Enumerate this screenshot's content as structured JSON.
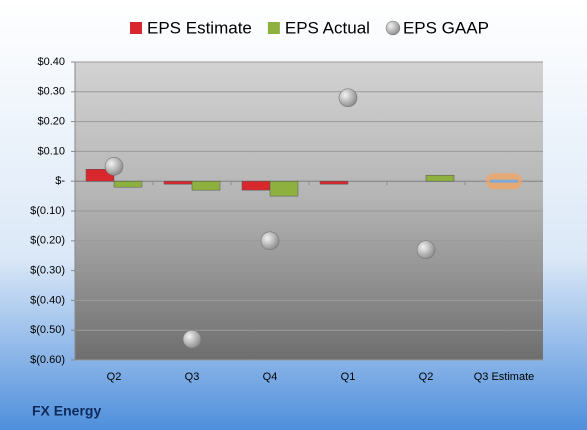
{
  "chart_data": {
    "type": "bar",
    "title": "FX Energy",
    "categories": [
      "Q2",
      "Q3",
      "Q4",
      "Q1",
      "Q2",
      "Q3 Estimate"
    ],
    "series": [
      {
        "name": "EPS Estimate",
        "color": "#d9272e",
        "values": [
          0.04,
          -0.01,
          -0.03,
          -0.01,
          null,
          0
        ]
      },
      {
        "name": "EPS Actual",
        "color": "#8db03f",
        "values": [
          -0.02,
          -0.03,
          -0.05,
          null,
          0.02,
          null
        ]
      },
      {
        "name": "EPS GAAP",
        "color": "#a0a0a0",
        "type": "scatter",
        "values": [
          0.05,
          -0.53,
          -0.2,
          0.28,
          -0.23,
          null
        ]
      }
    ],
    "ylim": [
      -0.6,
      0.4
    ],
    "yticks": [
      {
        "value": 0.4,
        "label": "$0.40"
      },
      {
        "value": 0.3,
        "label": "$0.30"
      },
      {
        "value": 0.2,
        "label": "$0.20"
      },
      {
        "value": 0.1,
        "label": "$0.10"
      },
      {
        "value": 0,
        "label": "$-"
      },
      {
        "value": -0.1,
        "label": "$(0.10)"
      },
      {
        "value": -0.2,
        "label": "$(0.20)"
      },
      {
        "value": -0.3,
        "label": "$(0.30)"
      },
      {
        "value": -0.4,
        "label": "$(0.40)"
      },
      {
        "value": -0.5,
        "label": "$(0.50)"
      },
      {
        "value": -0.6,
        "label": "$(0.60)"
      }
    ],
    "grid": true,
    "legend": "top"
  }
}
